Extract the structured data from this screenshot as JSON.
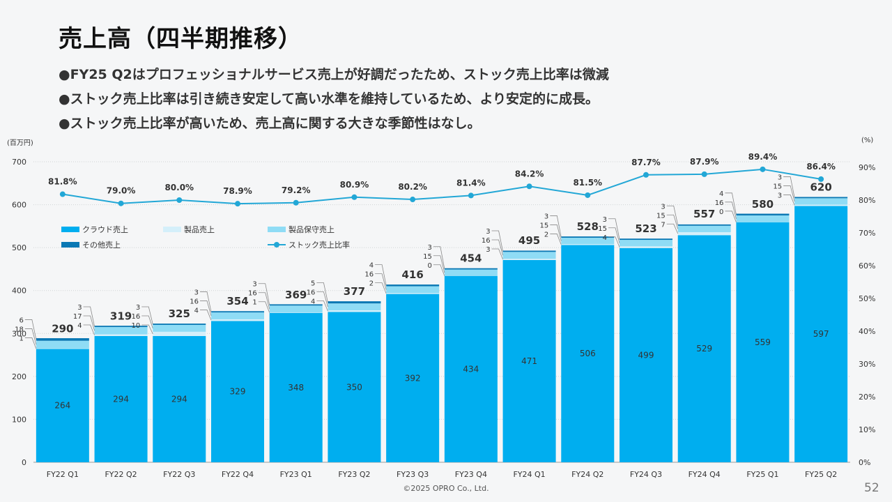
{
  "page": {
    "title": "売上高（四半期推移）",
    "bullets": [
      "●FY25 Q2はプロフェッショナルサービス売上が好調だったため、ストック売上比率は微減",
      "●ストック売上比率は引き続き安定して高い水準を維持しているため、より安定的に成長。",
      "●ストック売上比率が高いため、売上高に関する大きな季節性はなし。"
    ],
    "unit_left": "(百万円)",
    "unit_right": "(%)",
    "footer": "©2025 OPRO Co., Ltd.",
    "page_number": "52"
  },
  "colors": {
    "cloud": "#00aeef",
    "product": "#d4effa",
    "maintenance": "#8fdcf5",
    "other": "#0a78b4",
    "ratio_line": "#22a7d6",
    "grid": "#cfd3d6"
  },
  "chart_data": {
    "type": "bar",
    "stacked": true,
    "categories": [
      "FY22 Q1",
      "FY22 Q2",
      "FY22 Q3",
      "FY22 Q4",
      "FY23 Q1",
      "FY23 Q2",
      "FY23 Q3",
      "FY23 Q4",
      "FY24 Q1",
      "FY24 Q2",
      "FY24 Q3",
      "FY24 Q4",
      "FY25 Q1",
      "FY25 Q2"
    ],
    "series": [
      {
        "name": "クラウド売上",
        "values": [
          264,
          294,
          294,
          329,
          348,
          350,
          392,
          434,
          471,
          506,
          499,
          529,
          559,
          597
        ]
      },
      {
        "name": "製品売上",
        "values": [
          1,
          4,
          10,
          4,
          1,
          4,
          2,
          0,
          3,
          2,
          4,
          7,
          0,
          3
        ]
      },
      {
        "name": "製品保守売上",
        "values": [
          18,
          17,
          16,
          16,
          16,
          16,
          16,
          15,
          16,
          15,
          15,
          15,
          16,
          15
        ]
      },
      {
        "name": "その他売上",
        "values": [
          6,
          3,
          3,
          3,
          3,
          5,
          4,
          3,
          3,
          3,
          3,
          3,
          4,
          3
        ]
      }
    ],
    "totals": [
      290,
      319,
      325,
      354,
      369,
      377,
      416,
      454,
      495,
      528,
      523,
      557,
      580,
      620
    ],
    "line_series": {
      "name": "ストック売上比率",
      "values": [
        81.8,
        79.0,
        80.0,
        78.9,
        79.2,
        80.9,
        80.2,
        81.4,
        84.2,
        81.5,
        87.7,
        87.9,
        89.4,
        86.4
      ],
      "labels": [
        "81.8%",
        "79.0%",
        "80.0%",
        "78.9%",
        "79.2%",
        "80.9%",
        "80.2%",
        "81.4%",
        "84.2%",
        "81.5%",
        "87.7%",
        "87.9%",
        "89.4%",
        "86.4%"
      ]
    },
    "y_left": {
      "min": 0,
      "max": 700,
      "ticks": [
        0,
        100,
        200,
        300,
        400,
        500,
        600,
        700
      ]
    },
    "y_right": {
      "min": 0,
      "max": 90,
      "ticks": [
        "0%",
        "10%",
        "20%",
        "30%",
        "40%",
        "50%",
        "60%",
        "70%",
        "80%",
        "90%"
      ]
    },
    "legend": [
      {
        "name": "クラウド売上",
        "kind": "bar",
        "color": "#00aeef"
      },
      {
        "name": "製品売上",
        "kind": "bar",
        "color": "#d4effa"
      },
      {
        "name": "製品保守売上",
        "kind": "bar",
        "color": "#8fdcf5"
      },
      {
        "name": "その他売上",
        "kind": "bar",
        "color": "#0a78b4"
      },
      {
        "name": "ストック売上比率",
        "kind": "line",
        "color": "#22a7d6"
      }
    ],
    "legend_position": "top-left"
  }
}
